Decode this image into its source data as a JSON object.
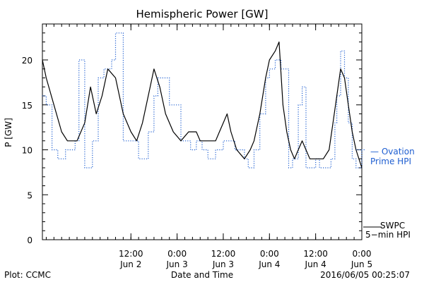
{
  "footer": {
    "plot_credit": "Plot: CCMC",
    "timestamp": "2016/06/05 00:25:07"
  },
  "chart_data": {
    "type": "line",
    "title": "Hemispheric Power [GW]",
    "xlabel": "Date and Time",
    "ylabel": "P [GW]",
    "xlim": [
      "2016-06-01T13:00",
      "2016-06-05T00:00"
    ],
    "ylim": [
      0,
      24
    ],
    "y_ticks": [
      0,
      5,
      10,
      15,
      20
    ],
    "x_ticks": [
      {
        "x": "2016-06-02T12:00",
        "time": "12:00",
        "date": "Jun 2"
      },
      {
        "x": "2016-06-03T00:00",
        "time": "0:00",
        "date": "Jun 3"
      },
      {
        "x": "2016-06-03T12:00",
        "time": "12:00",
        "date": "Jun 3"
      },
      {
        "x": "2016-06-04T00:00",
        "time": "0:00",
        "date": "Jun 4"
      },
      {
        "x": "2016-06-04T12:00",
        "time": "12:00",
        "date": "Jun 4"
      },
      {
        "x": "2016-06-05T00:00",
        "time": "0:00",
        "date": "Jun 5"
      }
    ],
    "legend": [
      {
        "series": "ovation",
        "lines": [
          "— Ovation",
          "Prime HPI"
        ]
      },
      {
        "series": "swpc",
        "lines": [
          "SWPC",
          "5−min HPI"
        ]
      }
    ],
    "legend_placement": "right",
    "grid": false,
    "series": [
      {
        "key": "ovation",
        "name": "Ovation Prime HPI",
        "color": "#1f5fd1",
        "style": "dotted-step",
        "points": [
          [
            "2016-06-01T13:00",
            16
          ],
          [
            "2016-06-01T14:00",
            15
          ],
          [
            "2016-06-01T15:30",
            10
          ],
          [
            "2016-06-01T17:00",
            9
          ],
          [
            "2016-06-01T19:00",
            10
          ],
          [
            "2016-06-01T21:30",
            11
          ],
          [
            "2016-06-01T22:30",
            20
          ],
          [
            "2016-06-02T00:00",
            8
          ],
          [
            "2016-06-02T02:00",
            11
          ],
          [
            "2016-06-02T03:30",
            18
          ],
          [
            "2016-06-02T05:00",
            19
          ],
          [
            "2016-06-02T07:00",
            20
          ],
          [
            "2016-06-02T08:00",
            23
          ],
          [
            "2016-06-02T10:00",
            11
          ],
          [
            "2016-06-02T14:00",
            9
          ],
          [
            "2016-06-02T16:30",
            12
          ],
          [
            "2016-06-02T18:00",
            16
          ],
          [
            "2016-06-02T19:00",
            18
          ],
          [
            "2016-06-02T22:00",
            15
          ],
          [
            "2016-06-03T01:00",
            11
          ],
          [
            "2016-06-03T03:30",
            10
          ],
          [
            "2016-06-03T05:00",
            11
          ],
          [
            "2016-06-03T06:30",
            10
          ],
          [
            "2016-06-03T08:00",
            9
          ],
          [
            "2016-06-03T10:00",
            10
          ],
          [
            "2016-06-03T12:00",
            11
          ],
          [
            "2016-06-03T15:00",
            10
          ],
          [
            "2016-06-03T17:30",
            9
          ],
          [
            "2016-06-03T18:30",
            8
          ],
          [
            "2016-06-03T20:00",
            10
          ],
          [
            "2016-06-03T21:30",
            14
          ],
          [
            "2016-06-03T23:00",
            18
          ],
          [
            "2016-06-04T00:00",
            19
          ],
          [
            "2016-06-04T01:30",
            20
          ],
          [
            "2016-06-04T03:00",
            19
          ],
          [
            "2016-06-04T05:00",
            8
          ],
          [
            "2016-06-04T06:00",
            9
          ],
          [
            "2016-06-04T07:30",
            15
          ],
          [
            "2016-06-04T08:30",
            17
          ],
          [
            "2016-06-04T09:30",
            8
          ],
          [
            "2016-06-04T10:30",
            8
          ],
          [
            "2016-06-04T12:00",
            9
          ],
          [
            "2016-06-04T13:00",
            8
          ],
          [
            "2016-06-04T15:00",
            8
          ],
          [
            "2016-06-04T16:00",
            9
          ],
          [
            "2016-06-04T17:00",
            13
          ],
          [
            "2016-06-04T17:30",
            16
          ],
          [
            "2016-06-04T18:30",
            21
          ],
          [
            "2016-06-04T19:30",
            18
          ],
          [
            "2016-06-04T20:30",
            13
          ],
          [
            "2016-06-04T21:30",
            9
          ],
          [
            "2016-06-04T22:30",
            8
          ],
          [
            "2016-06-05T00:00",
            10
          ]
        ]
      },
      {
        "key": "swpc",
        "name": "SWPC 5-min HPI",
        "color": "#000000",
        "style": "solid",
        "points": [
          [
            "2016-06-01T13:00",
            20
          ],
          [
            "2016-06-01T14:00",
            18
          ],
          [
            "2016-06-01T16:00",
            15
          ],
          [
            "2016-06-01T18:00",
            12
          ],
          [
            "2016-06-01T19:30",
            11
          ],
          [
            "2016-06-01T22:00",
            11
          ],
          [
            "2016-06-02T00:00",
            13
          ],
          [
            "2016-06-02T01:30",
            17
          ],
          [
            "2016-06-02T03:00",
            14
          ],
          [
            "2016-06-02T04:30",
            16
          ],
          [
            "2016-06-02T06:00",
            19
          ],
          [
            "2016-06-02T08:00",
            18
          ],
          [
            "2016-06-02T10:00",
            14
          ],
          [
            "2016-06-02T12:00",
            12
          ],
          [
            "2016-06-02T13:30",
            11
          ],
          [
            "2016-06-02T15:00",
            13
          ],
          [
            "2016-06-02T17:00",
            17
          ],
          [
            "2016-06-02T18:00",
            19
          ],
          [
            "2016-06-02T19:30",
            17
          ],
          [
            "2016-06-02T21:00",
            14
          ],
          [
            "2016-06-02T23:00",
            12
          ],
          [
            "2016-06-03T01:00",
            11
          ],
          [
            "2016-06-03T03:00",
            12
          ],
          [
            "2016-06-03T05:00",
            12
          ],
          [
            "2016-06-03T06:00",
            11
          ],
          [
            "2016-06-03T08:00",
            11
          ],
          [
            "2016-06-03T10:00",
            11
          ],
          [
            "2016-06-03T11:00",
            12
          ],
          [
            "2016-06-03T12:00",
            13
          ],
          [
            "2016-06-03T13:00",
            14
          ],
          [
            "2016-06-03T14:00",
            12
          ],
          [
            "2016-06-03T15:30",
            10
          ],
          [
            "2016-06-03T17:30",
            9
          ],
          [
            "2016-06-03T19:00",
            10
          ],
          [
            "2016-06-03T20:00",
            11
          ],
          [
            "2016-06-03T21:30",
            14
          ],
          [
            "2016-06-03T23:00",
            18
          ],
          [
            "2016-06-04T00:00",
            20
          ],
          [
            "2016-06-04T01:30",
            21
          ],
          [
            "2016-06-04T02:30",
            22
          ],
          [
            "2016-06-04T03:30",
            15
          ],
          [
            "2016-06-04T04:30",
            12
          ],
          [
            "2016-06-04T05:30",
            10
          ],
          [
            "2016-06-04T06:30",
            9
          ],
          [
            "2016-06-04T07:30",
            10
          ],
          [
            "2016-06-04T08:30",
            11
          ],
          [
            "2016-06-04T09:30",
            10
          ],
          [
            "2016-06-04T10:30",
            9
          ],
          [
            "2016-06-04T12:00",
            9
          ],
          [
            "2016-06-04T14:00",
            9
          ],
          [
            "2016-06-04T15:30",
            10
          ],
          [
            "2016-06-04T16:30",
            13
          ],
          [
            "2016-06-04T17:30",
            16
          ],
          [
            "2016-06-04T18:30",
            19
          ],
          [
            "2016-06-04T19:30",
            18
          ],
          [
            "2016-06-04T20:30",
            15
          ],
          [
            "2016-06-04T21:30",
            12
          ],
          [
            "2016-06-04T22:30",
            10
          ],
          [
            "2016-06-05T00:00",
            8
          ]
        ]
      }
    ]
  }
}
